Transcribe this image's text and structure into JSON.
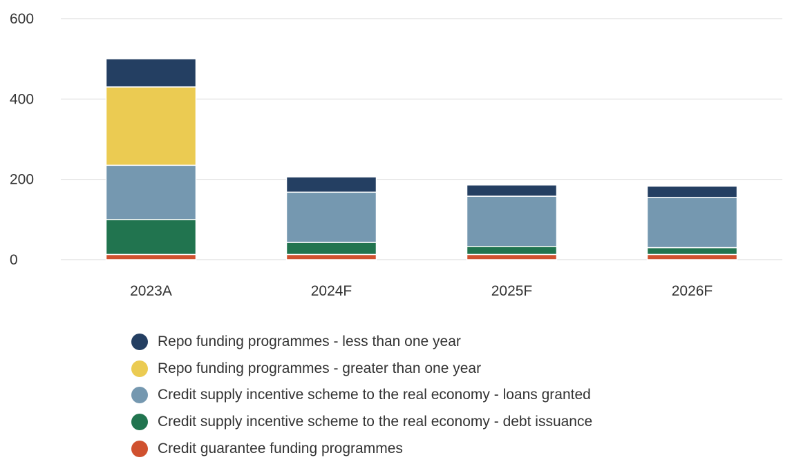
{
  "chart_data": {
    "type": "bar",
    "stacked": true,
    "categories": [
      "2023A",
      "2024F",
      "2025F",
      "2026F"
    ],
    "series": [
      {
        "name": "Credit guarantee funding programmes",
        "color": "#d0512f",
        "values": [
          13,
          13,
          13,
          13
        ]
      },
      {
        "name": "Credit supply incentive scheme to the real economy - debt issuance",
        "color": "#21744f",
        "values": [
          87,
          30,
          20,
          17
        ]
      },
      {
        "name": "Credit supply incentive scheme to the real economy - loans granted",
        "color": "#7598b0",
        "values": [
          135,
          125,
          125,
          125
        ]
      },
      {
        "name": "Repo funding programmes - greater than one year",
        "color": "#ebcb52",
        "values": [
          195,
          0,
          0,
          0
        ]
      },
      {
        "name": "Repo funding programmes - less than one year",
        "color": "#243f62",
        "values": [
          70,
          38,
          28,
          28
        ]
      }
    ],
    "legend_order": [
      "Repo funding programmes - less than one year",
      "Repo funding programmes - greater than one year",
      "Credit supply incentive scheme to the real economy - loans granted",
      "Credit supply incentive scheme to the real economy - debt issuance",
      "Credit guarantee funding programmes"
    ],
    "yticks": [
      0,
      200,
      400,
      600
    ],
    "ylim": [
      0,
      600
    ],
    "grid": true,
    "legend_position": "bottom"
  }
}
